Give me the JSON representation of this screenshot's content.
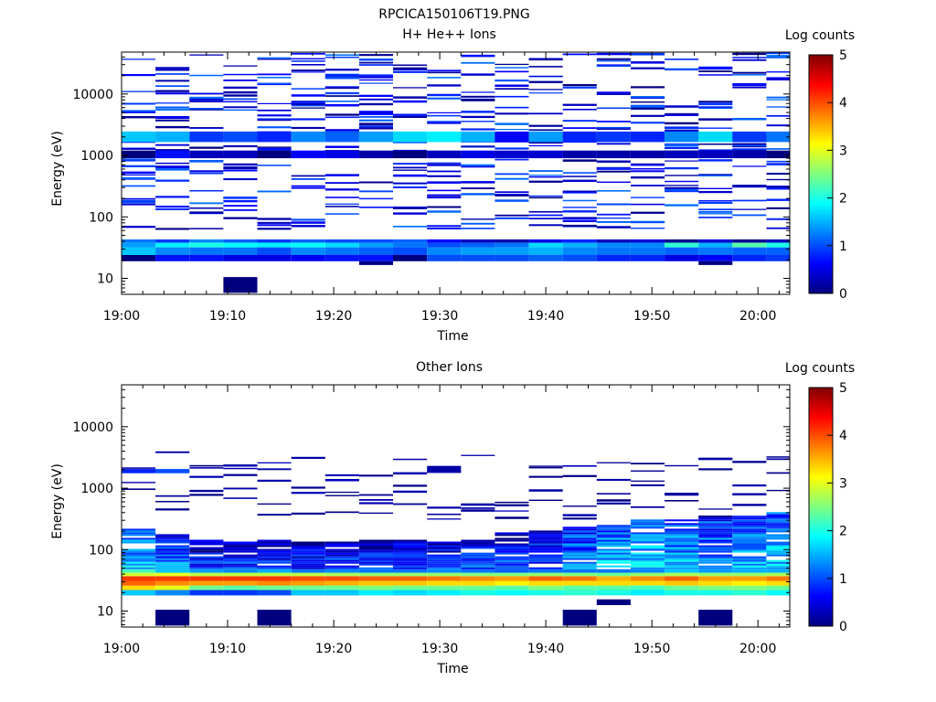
{
  "figure_title": "RPCICA150106T19.PNG",
  "colors": {
    "colormap": [
      "#00007f",
      "#0000ff",
      "#007fff",
      "#00ffff",
      "#7fff7f",
      "#ffff00",
      "#ff7f00",
      "#ff0000",
      "#7f0000"
    ],
    "background": "#ffffff",
    "axes": "#000000"
  },
  "chart_data": [
    {
      "type": "heatmap",
      "title": "H+ He++ Ions",
      "xlabel": "Time",
      "ylabel": "Energy (eV)",
      "x_ticks": [
        "19:00",
        "19:10",
        "19:20",
        "19:30",
        "19:40",
        "19:50",
        "20:00"
      ],
      "xlim_minutes": [
        0,
        63
      ],
      "ylim": [
        5.5,
        48000
      ],
      "y_scale": "log",
      "y_ticks": [
        "10",
        "100",
        "1000",
        "10000"
      ],
      "colorbar": {
        "label": "Log counts",
        "range": [
          0,
          5
        ],
        "ticks": [
          "0",
          "1",
          "2",
          "3",
          "4",
          "5"
        ]
      },
      "time_bins_minutes": [
        0.0,
        3.2,
        6.4,
        9.6,
        12.8,
        16.0,
        19.2,
        22.4,
        25.6,
        28.8,
        32.0,
        35.2,
        38.4,
        41.6,
        44.8,
        48.0,
        51.2,
        54.4,
        57.6,
        60.8,
        64.0
      ],
      "band_cells": [
        {
          "emin": 24,
          "emax": 32,
          "logcounts": [
            1.6,
            1.3,
            1.2,
            1.2,
            1.0,
            1.3,
            1.2,
            1.1,
            1.0,
            1.3,
            1.4,
            1.4,
            1.5,
            1.3,
            1.2,
            1.2,
            1.1,
            1.2,
            1.1,
            1.1
          ]
        },
        {
          "emin": 32,
          "emax": 38,
          "logcounts": [
            1.4,
            1.8,
            2.0,
            1.9,
            1.8,
            1.9,
            1.7,
            1.4,
            1.2,
            1.0,
            1.1,
            1.2,
            1.7,
            1.5,
            1.3,
            1.3,
            2.1,
            1.5,
            2.3,
            2.0
          ]
        },
        {
          "emin": 38,
          "emax": 43,
          "logcounts": [
            1.2,
            0.9,
            1.3,
            1.1,
            0.9,
            1.1,
            1.0,
            1.0,
            1.1,
            0.6,
            0.3,
            0.2,
            0.5,
            0.8,
            0.3,
            0.4,
            0.1,
            0.4,
            0.1,
            0.3
          ]
        },
        {
          "emin": 19,
          "emax": 24,
          "logcounts": [
            0.0,
            0.7,
            0.7,
            0.5,
            0.5,
            0.6,
            0.7,
            0.7,
            0.0,
            1.0,
            1.0,
            1.0,
            1.1,
            1.0,
            0.8,
            0.8,
            0.5,
            0.6,
            0.8,
            0.9
          ]
        },
        {
          "emin": 1650,
          "emax": 2450,
          "logcounts": [
            1.6,
            1.5,
            0.9,
            1.0,
            0.8,
            1.3,
            1.1,
            1.4,
            1.7,
            1.8,
            1.5,
            0.6,
            1.4,
            0.8,
            0.9,
            0.8,
            1.3,
            1.7,
            0.9,
            1.2
          ]
        },
        {
          "emin": 900,
          "emax": 1200,
          "logcounts": [
            0.0,
            0.7,
            0.3,
            0.3,
            0.0,
            0.6,
            0.5,
            0.2,
            0.0,
            0.3,
            0.5,
            0.4,
            0.4,
            0.2,
            0.2,
            0.2,
            0.3,
            0.3,
            0.2,
            0.0
          ]
        }
      ],
      "isolated_blocks": [
        {
          "t0": 9.6,
          "t1": 12.8,
          "emin": 5.8,
          "emax": 10.5,
          "logcounts": 0.0
        },
        {
          "t0": 22.4,
          "t1": 25.6,
          "emin": 16.5,
          "emax": 19.0,
          "logcounts": 0.0
        },
        {
          "t0": 54.4,
          "t1": 57.6,
          "emin": 16.5,
          "emax": 19.0,
          "logcounts": 0.0
        }
      ],
      "sparse_energy_range": [
        60,
        45000
      ],
      "sparse_level_range": [
        0.0,
        1.2
      ]
    },
    {
      "type": "heatmap",
      "title": "Other Ions",
      "xlabel": "Time",
      "ylabel": "Energy (eV)",
      "x_ticks": [
        "19:00",
        "19:10",
        "19:20",
        "19:30",
        "19:40",
        "19:50",
        "20:00"
      ],
      "xlim_minutes": [
        0,
        63
      ],
      "ylim": [
        5.5,
        48000
      ],
      "y_scale": "log",
      "y_ticks": [
        "10",
        "100",
        "1000",
        "10000"
      ],
      "colorbar": {
        "label": "Log counts",
        "range": [
          0,
          5
        ],
        "ticks": [
          "0",
          "1",
          "2",
          "3",
          "4",
          "5"
        ]
      },
      "time_bins_minutes": [
        0.0,
        3.2,
        6.4,
        9.6,
        12.8,
        16.0,
        19.2,
        22.4,
        25.6,
        28.8,
        32.0,
        35.2,
        38.4,
        41.6,
        44.8,
        48.0,
        51.2,
        54.4,
        57.6,
        60.8,
        64.0
      ],
      "band_cells": [
        {
          "emin": 22,
          "emax": 26,
          "logcounts": [
            3.3,
            3.0,
            2.4,
            2.3,
            2.4,
            2.4,
            2.4,
            2.5,
            2.4,
            2.4,
            2.4,
            2.3,
            2.5,
            2.3,
            2.3,
            2.2,
            2.4,
            2.5,
            2.5,
            2.4
          ]
        },
        {
          "emin": 26,
          "emax": 31,
          "logcounts": [
            3.9,
            3.7,
            3.6,
            3.6,
            3.7,
            3.6,
            3.5,
            3.4,
            3.4,
            3.3,
            3.3,
            3.2,
            3.3,
            3.3,
            3.3,
            3.3,
            3.4,
            3.3,
            3.2,
            3.3
          ]
        },
        {
          "emin": 31,
          "emax": 37,
          "logcounts": [
            4.1,
            4.1,
            4.1,
            4.1,
            4.1,
            4.0,
            4.0,
            3.9,
            3.9,
            3.8,
            3.7,
            3.6,
            3.9,
            3.8,
            3.5,
            3.7,
            3.9,
            3.6,
            3.6,
            3.8
          ]
        },
        {
          "emin": 37,
          "emax": 42,
          "logcounts": [
            2.9,
            3.0,
            2.8,
            2.8,
            2.8,
            2.8,
            2.7,
            2.6,
            2.6,
            2.6,
            2.5,
            2.5,
            2.6,
            2.5,
            2.4,
            2.6,
            2.7,
            2.6,
            2.6,
            2.7
          ]
        },
        {
          "emin": 42,
          "emax": 48,
          "logcounts": [
            2.2,
            1.6,
            1.4,
            1.3,
            1.5,
            1.2,
            1.3,
            1.2,
            1.2,
            1.3,
            1.2,
            1.1,
            1.2,
            1.2,
            1.2,
            1.3,
            1.6,
            1.4,
            1.5,
            1.5
          ]
        },
        {
          "emin": 18,
          "emax": 22,
          "logcounts": [
            1.6,
            1.3,
            0.9,
            0.9,
            1.0,
            1.6,
            1.6,
            1.8,
            1.7,
            1.8,
            2.0,
            1.9,
            2.0,
            2.1,
            2.0,
            1.8,
            2.0,
            2.0,
            2.1,
            1.9
          ]
        }
      ],
      "dense_region": {
        "emin": 48,
        "emax_by_bin": [
          220,
          180,
          150,
          140,
          150,
          140,
          140,
          150,
          145,
          140,
          160,
          190,
          200,
          240,
          260,
          300,
          320,
          340,
          360,
          400
        ],
        "mean_logcounts": [
          1.6,
          1.2,
          0.8,
          0.9,
          0.7,
          0.8,
          0.9,
          0.8,
          0.8,
          0.8,
          0.9,
          0.9,
          1.0,
          1.3,
          1.6,
          1.6,
          1.5,
          1.4,
          1.5,
          1.6
        ]
      },
      "isolated_blocks": [
        {
          "t0": 3.2,
          "t1": 6.4,
          "emin": 5.8,
          "emax": 10.5,
          "logcounts": 0.0
        },
        {
          "t0": 12.8,
          "t1": 16.0,
          "emin": 5.8,
          "emax": 10.5,
          "logcounts": 0.0
        },
        {
          "t0": 41.6,
          "t1": 44.8,
          "emin": 5.8,
          "emax": 10.5,
          "logcounts": 0.0
        },
        {
          "t0": 44.8,
          "t1": 48.0,
          "emin": 12.5,
          "emax": 15.5,
          "logcounts": 0.0
        },
        {
          "t0": 54.4,
          "t1": 57.6,
          "emin": 5.8,
          "emax": 10.5,
          "logcounts": 0.0
        },
        {
          "t0": 0.0,
          "t1": 3.2,
          "emin": 1750,
          "emax": 2050,
          "logcounts": 0.8
        },
        {
          "t0": 3.2,
          "t1": 6.4,
          "emin": 1750,
          "emax": 2050,
          "logcounts": 1.0
        },
        {
          "t0": 28.8,
          "t1": 32.0,
          "emin": 1800,
          "emax": 2300,
          "logcounts": 0.2
        }
      ],
      "sparse_energy_range": [
        300,
        3800
      ],
      "sparse_level_range": [
        0.0,
        0.3
      ]
    }
  ]
}
